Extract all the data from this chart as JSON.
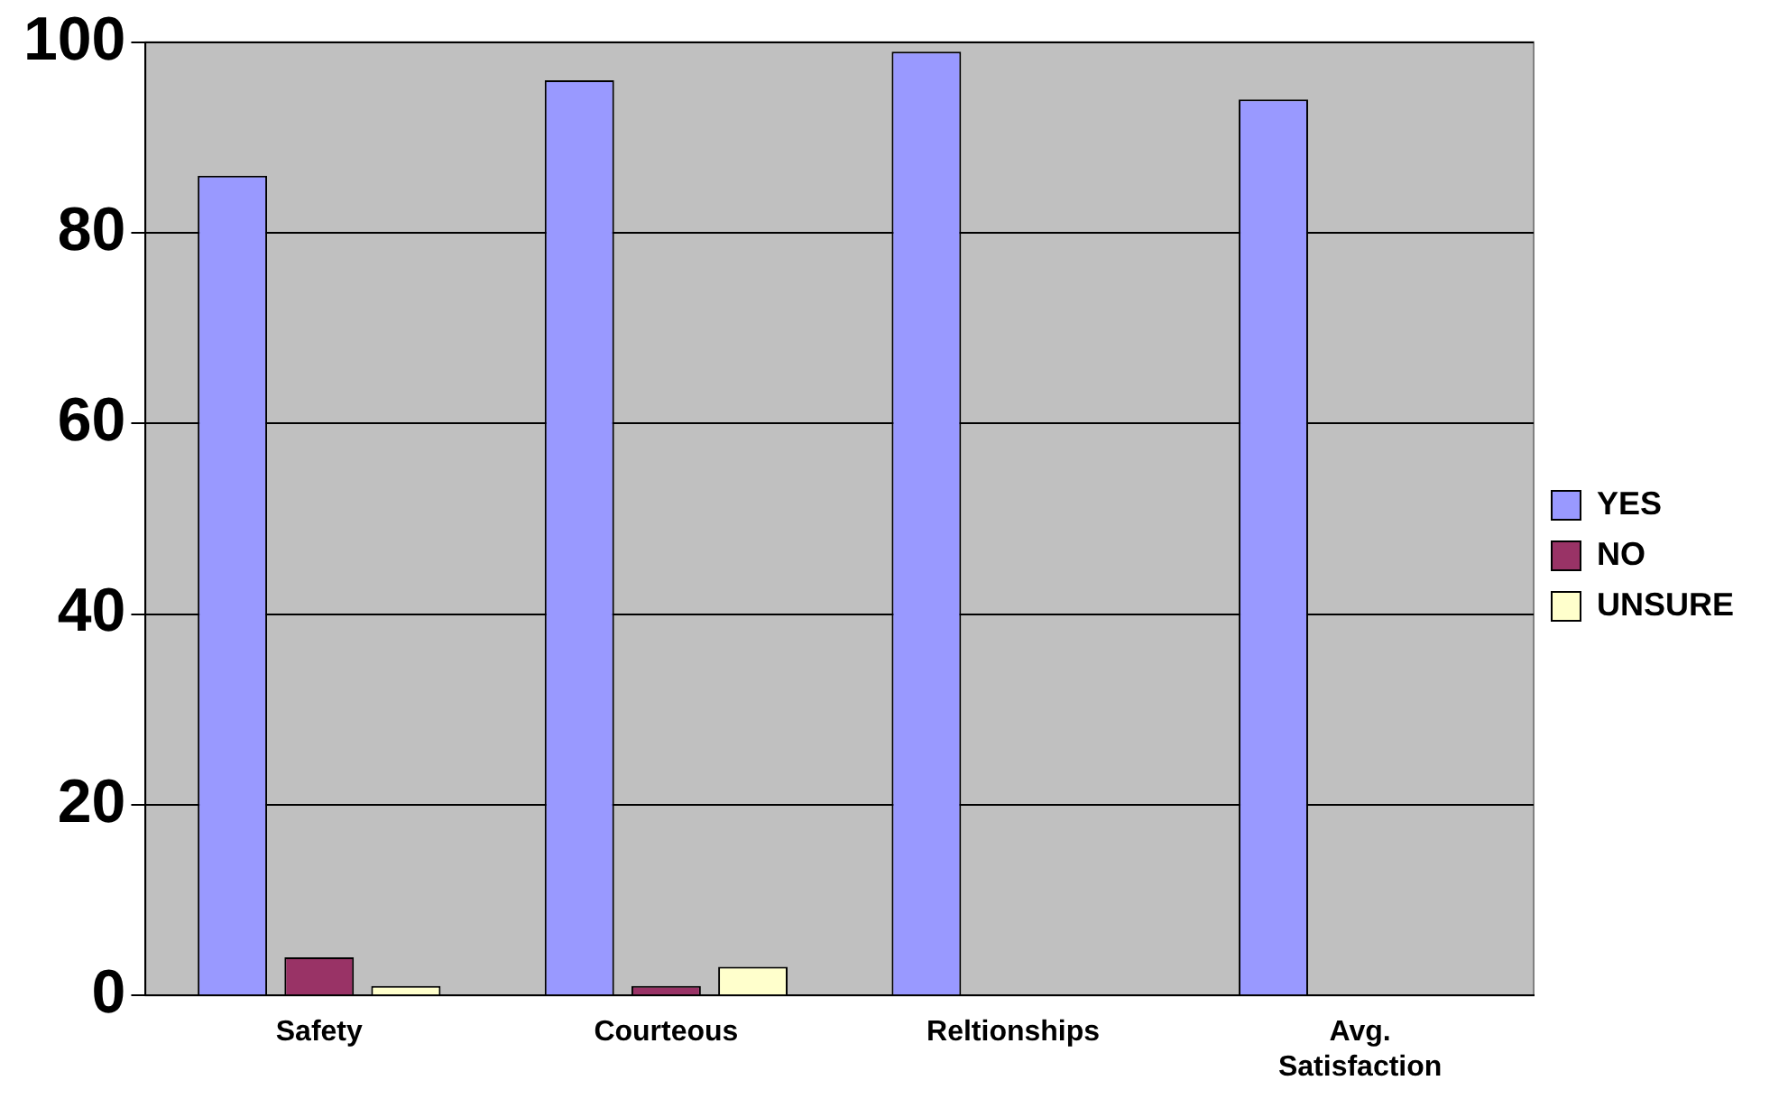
{
  "chart_data": {
    "type": "bar",
    "categories": [
      "Safety",
      "Courteous",
      "Reltionships",
      "Avg. Satisfaction"
    ],
    "series": [
      {
        "name": "YES",
        "color": "#9999ff",
        "values": [
          86,
          96,
          99,
          94
        ]
      },
      {
        "name": "NO",
        "color": "#993366",
        "values": [
          4,
          1,
          0,
          0
        ]
      },
      {
        "name": "UNSURE",
        "color": "#ffffcc",
        "values": [
          1,
          3,
          0,
          0
        ]
      }
    ],
    "ylim": [
      0,
      100
    ],
    "yticks": [
      0,
      20,
      40,
      60,
      80,
      100
    ],
    "grid": "y",
    "legend": "right"
  }
}
